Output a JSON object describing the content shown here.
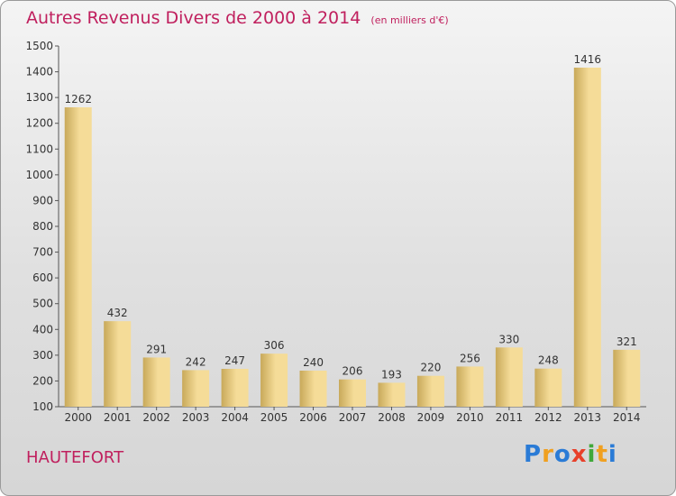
{
  "title": "Autres Revenus Divers de 2000 à 2014",
  "subtitle": "(en milliers d'€)",
  "location_label": "HAUTEFORT",
  "logo": {
    "letters": [
      {
        "ch": "P",
        "color": "#2a7bd6"
      },
      {
        "ch": "r",
        "color": "#f0a020"
      },
      {
        "ch": "o",
        "color": "#2a7bd6"
      },
      {
        "ch": "x",
        "color": "#e8402a"
      },
      {
        "ch": "i",
        "color": "#40a83a"
      },
      {
        "ch": "t",
        "color": "#f0a020"
      },
      {
        "ch": "i",
        "color": "#2a7bd6"
      }
    ]
  },
  "colors": {
    "title": "#c0205e",
    "bar_light": "#f5dc98",
    "bar_dark": "#c8a95a"
  },
  "chart_data": {
    "type": "bar",
    "title": "Autres Revenus Divers de 2000 à 2014",
    "subtitle": "(en milliers d'€)",
    "xlabel": "",
    "ylabel": "",
    "categories": [
      "2000",
      "2001",
      "2002",
      "2003",
      "2004",
      "2005",
      "2006",
      "2007",
      "2008",
      "2009",
      "2010",
      "2011",
      "2012",
      "2013",
      "2014"
    ],
    "values": [
      1262,
      432,
      291,
      242,
      247,
      306,
      240,
      206,
      193,
      220,
      256,
      330,
      248,
      1416,
      321
    ],
    "ylim": [
      100,
      1500
    ],
    "yticks": [
      100,
      200,
      300,
      400,
      500,
      600,
      700,
      800,
      900,
      1000,
      1100,
      1200,
      1300,
      1400,
      1500
    ],
    "data_labels": true,
    "grid": false,
    "legend": "none"
  }
}
